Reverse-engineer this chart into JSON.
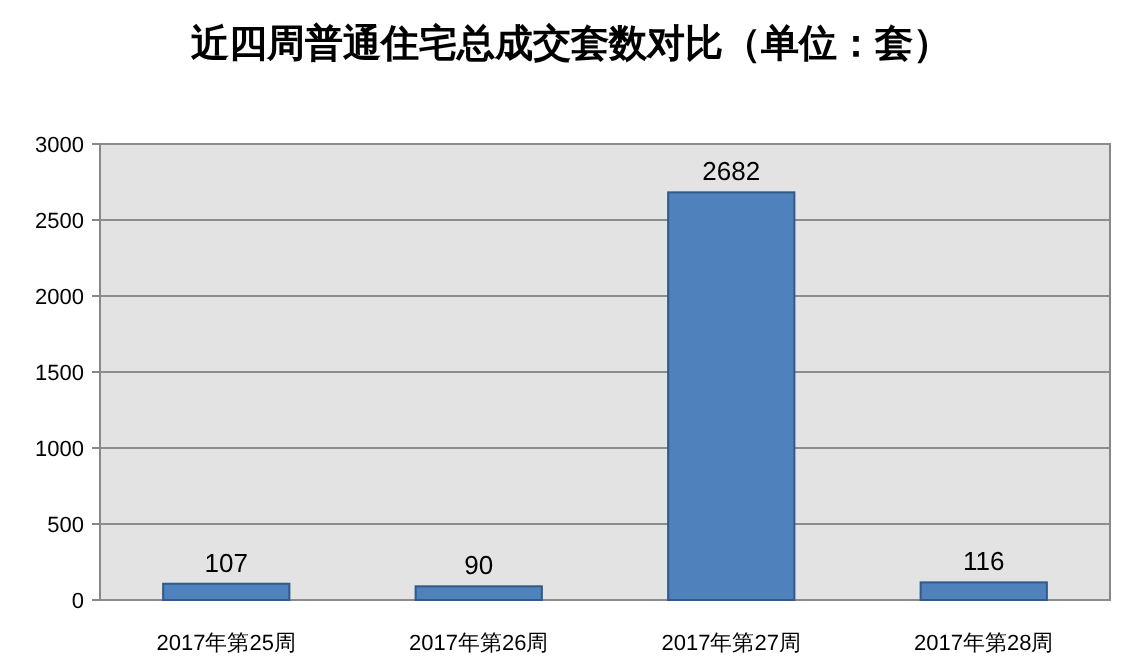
{
  "chart_data": {
    "type": "bar",
    "title": "近四周普通住宅总成交套数对比（单位：套）",
    "categories": [
      "2017年第25周",
      "2017年第26周",
      "2017年第27周",
      "2017年第28周"
    ],
    "values": [
      107,
      90,
      2682,
      116
    ],
    "color": "#4f81bd",
    "ylim": [
      0,
      3000
    ],
    "yticks": [
      0,
      500,
      1000,
      1500,
      2000,
      2500,
      3000
    ],
    "grid": "y",
    "data_labels": true
  }
}
